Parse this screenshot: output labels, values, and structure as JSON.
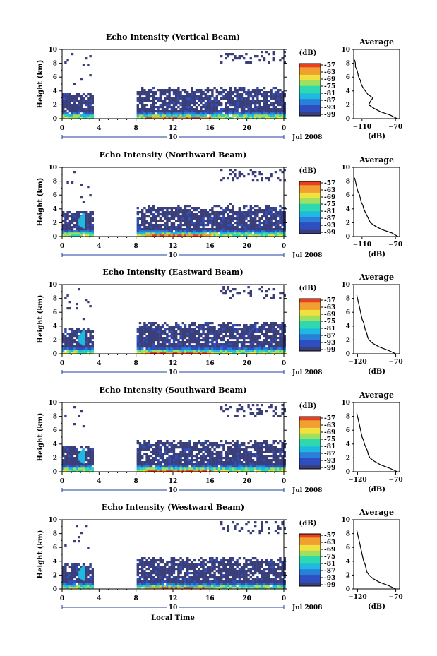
{
  "colors": {
    "scale": [
      "#3a3f7a",
      "#2f4fc0",
      "#2a7fd8",
      "#1fb8e0",
      "#2fd9b0",
      "#9fe060",
      "#f0e040",
      "#f0a030",
      "#e84020"
    ]
  },
  "bottom_xlabel": "Local Time",
  "chart_data": [
    {
      "type": "heatmap",
      "title": "Echo Intensity (Vertical Beam)",
      "ylabel": "Height (km)",
      "xticks": [
        "0",
        "4",
        "8",
        "12",
        "16",
        "20",
        "0"
      ],
      "yticks": [
        "0",
        "2",
        "4",
        "6",
        "8",
        "10"
      ],
      "date_marker": "10",
      "date_label": "Jul 2008",
      "colorbar": {
        "title": "(dB)",
        "ticks": [
          "-57",
          "-63",
          "-69",
          "-75",
          "-81",
          "-87",
          "-93",
          "-99"
        ]
      },
      "average": {
        "title": "Average",
        "xlabel": "(dB)",
        "xticks": [
          "-110",
          "-70"
        ],
        "xlim": [
          -120,
          -65
        ],
        "height": [
          0,
          0.5,
          1,
          1.5,
          2,
          2.5,
          3,
          3.5,
          4,
          4.5,
          5,
          5.5,
          6,
          6.5,
          7,
          7.5,
          8,
          8.5
        ],
        "db": [
          -68,
          -76,
          -88,
          -96,
          -102,
          -100,
          -97,
          -103,
          -106,
          -109,
          -111,
          -112,
          -114,
          -115,
          -116,
          -118,
          -118,
          -119
        ]
      }
    },
    {
      "type": "heatmap",
      "title": "Echo Intensity (Northward Beam)",
      "ylabel": "Height (km)",
      "xticks": [
        "0",
        "4",
        "8",
        "12",
        "16",
        "20",
        "0"
      ],
      "yticks": [
        "0",
        "2",
        "4",
        "6",
        "8",
        "10"
      ],
      "date_marker": "10",
      "date_label": "Jul 2008",
      "colorbar": {
        "title": "(dB)",
        "ticks": [
          "-57",
          "-63",
          "-69",
          "-75",
          "-81",
          "-87",
          "-93",
          "-99"
        ]
      },
      "average": {
        "title": "Average",
        "xlabel": "(dB)",
        "xticks": [
          "-110",
          "-70"
        ],
        "xlim": [
          -120,
          -65
        ],
        "height": [
          0,
          0.5,
          1,
          1.5,
          2,
          2.5,
          3,
          3.5,
          4,
          4.5,
          5,
          5.5,
          6,
          6.5,
          7,
          7.5,
          8,
          8.5
        ],
        "db": [
          -67,
          -74,
          -86,
          -94,
          -100,
          -102,
          -104,
          -106,
          -108,
          -109,
          -111,
          -112,
          -113,
          -115,
          -116,
          -117,
          -118,
          -119
        ]
      }
    },
    {
      "type": "heatmap",
      "title": "Echo Intensity (Eastward Beam)",
      "ylabel": "Height (km)",
      "xticks": [
        "0",
        "4",
        "8",
        "12",
        "16",
        "20",
        "0"
      ],
      "yticks": [
        "0",
        "2",
        "4",
        "6",
        "8",
        "10"
      ],
      "date_marker": "10",
      "date_label": "Jul 2008",
      "colorbar": {
        "title": "(dB)",
        "ticks": [
          "-57",
          "-63",
          "-69",
          "-75",
          "-81",
          "-87",
          "-93",
          "-99"
        ]
      },
      "average": {
        "title": "Average",
        "xlabel": "(dB)",
        "xticks": [
          "-120",
          "-70"
        ],
        "xlim": [
          -125,
          -65
        ],
        "height": [
          0,
          0.5,
          1,
          1.5,
          2,
          2.5,
          3,
          3.5,
          4,
          4.5,
          5,
          5.5,
          6,
          6.5,
          7,
          7.5,
          8,
          8.5
        ],
        "db": [
          -70,
          -80,
          -92,
          -100,
          -105,
          -107,
          -108,
          -110,
          -111,
          -112,
          -114,
          -115,
          -116,
          -117,
          -118,
          -119,
          -120,
          -121
        ]
      }
    },
    {
      "type": "heatmap",
      "title": "Echo Intensity (Southward Beam)",
      "ylabel": "Height (km)",
      "xticks": [
        "0",
        "4",
        "8",
        "12",
        "16",
        "20",
        "0"
      ],
      "yticks": [
        "0",
        "2",
        "4",
        "6",
        "8",
        "10"
      ],
      "date_marker": "10",
      "date_label": "Jul 2008",
      "colorbar": {
        "title": "(dB)",
        "ticks": [
          "-57",
          "-63",
          "-69",
          "-75",
          "-81",
          "-87",
          "-93",
          "-99"
        ]
      },
      "average": {
        "title": "Average",
        "xlabel": "(dB)",
        "xticks": [
          "-120",
          "-70"
        ],
        "xlim": [
          -125,
          -65
        ],
        "height": [
          0,
          0.5,
          1,
          1.5,
          2,
          2.5,
          3,
          3.5,
          4,
          4.5,
          5,
          5.5,
          6,
          6.5,
          7,
          7.5,
          8,
          8.5
        ],
        "db": [
          -68,
          -78,
          -90,
          -98,
          -104,
          -106,
          -107,
          -109,
          -111,
          -112,
          -114,
          -115,
          -116,
          -117,
          -118,
          -119,
          -120,
          -121
        ]
      }
    },
    {
      "type": "heatmap",
      "title": "Echo Intensity (Westward Beam)",
      "ylabel": "Height (km)",
      "xticks": [
        "0",
        "4",
        "8",
        "12",
        "16",
        "20",
        "0"
      ],
      "yticks": [
        "0",
        "2",
        "4",
        "6",
        "8",
        "10"
      ],
      "date_marker": "10",
      "date_label": "Jul 2008",
      "colorbar": {
        "title": "(dB)",
        "ticks": [
          "-57",
          "-63",
          "-69",
          "-75",
          "-81",
          "-87",
          "-93",
          "-99"
        ]
      },
      "average": {
        "title": "Average",
        "xlabel": "(dB)",
        "xticks": [
          "-120",
          "-70"
        ],
        "xlim": [
          -125,
          -65
        ],
        "height": [
          0,
          0.5,
          1,
          1.5,
          2,
          2.5,
          3,
          3.5,
          4,
          4.5,
          5,
          5.5,
          6,
          6.5,
          7,
          7.5,
          8,
          8.5
        ],
        "db": [
          -70,
          -80,
          -92,
          -100,
          -105,
          -108,
          -109,
          -110,
          -112,
          -113,
          -114,
          -115,
          -116,
          -117,
          -118,
          -119,
          -120,
          -121
        ]
      }
    }
  ]
}
